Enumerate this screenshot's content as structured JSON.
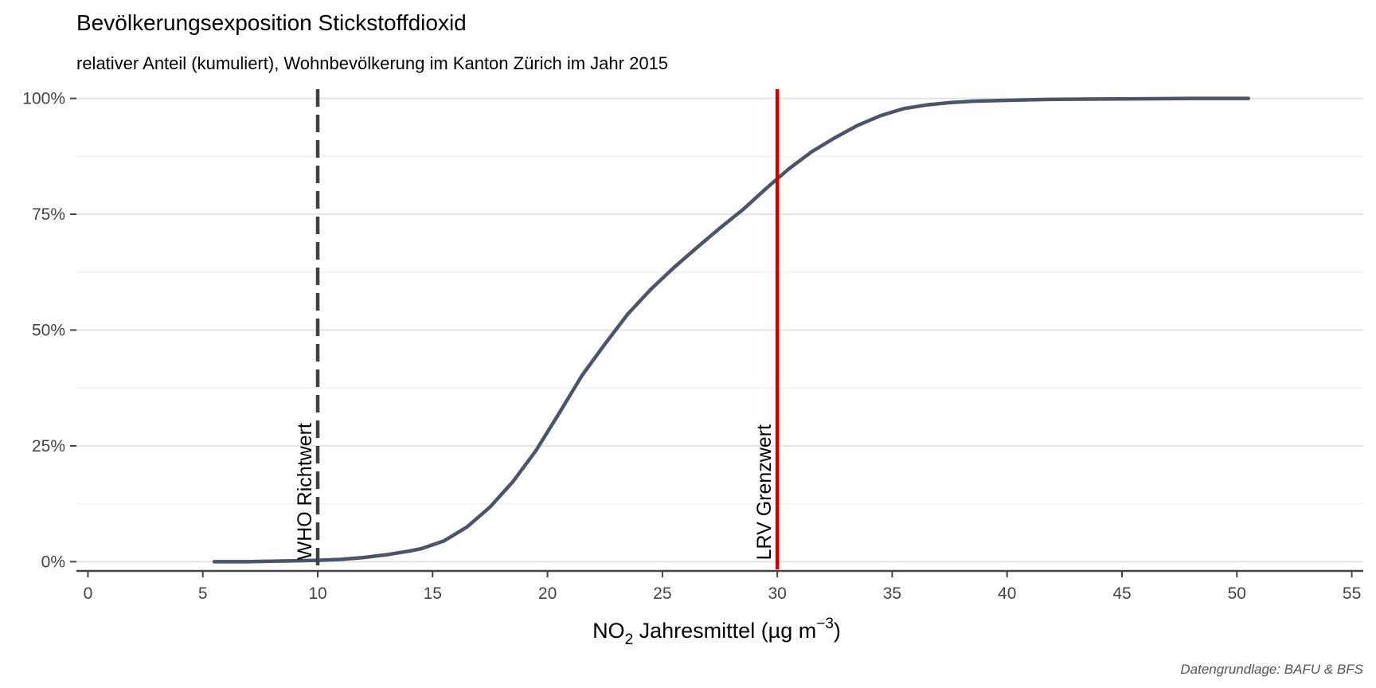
{
  "chart_data": {
    "type": "line",
    "title": "Bevölkerungsexposition Stickstoffdioxid",
    "subtitle": "relativer Anteil (kumuliert), Wohnbevölkerung im Kanton Zürich im Jahr 2015",
    "xlabel": {
      "prefix": "NO",
      "sub": "2",
      "mid": " Jahresmittel (µg m",
      "sup": "−3",
      "suffix": ")"
    },
    "ylabel": "",
    "caption": "Datengrundlage: BAFU & BFS",
    "xlim": [
      -0.5,
      55.5
    ],
    "ylim": [
      -0.02,
      1.02
    ],
    "x_ticks": [
      0,
      5,
      10,
      15,
      20,
      25,
      30,
      35,
      40,
      45,
      50,
      55
    ],
    "x_tick_labels": [
      "0",
      "5",
      "10",
      "15",
      "20",
      "25",
      "30",
      "35",
      "40",
      "45",
      "50",
      "55"
    ],
    "y_ticks": [
      0,
      0.25,
      0.5,
      0.75,
      1.0
    ],
    "y_tick_labels": [
      "0%",
      "25%",
      "50%",
      "75%",
      "100%"
    ],
    "grid": true,
    "series": [
      {
        "color": "#4b5468",
        "x": [
          5.5,
          6,
          7,
          8,
          9,
          10,
          11,
          12,
          13,
          14,
          14.5,
          15.5,
          16.5,
          17.5,
          18.5,
          19.5,
          20.5,
          21.5,
          22.5,
          23.5,
          24.5,
          25.5,
          26.5,
          27.5,
          28.5,
          29.5,
          30.5,
          31.5,
          32.5,
          33.5,
          34.5,
          35.5,
          36.5,
          37.5,
          38.5,
          40,
          42,
          45,
          48,
          50.5
        ],
        "y": [
          0.0,
          0.0,
          0.0,
          0.001,
          0.002,
          0.003,
          0.005,
          0.009,
          0.015,
          0.023,
          0.028,
          0.045,
          0.075,
          0.118,
          0.173,
          0.24,
          0.32,
          0.402,
          0.47,
          0.535,
          0.588,
          0.635,
          0.678,
          0.72,
          0.76,
          0.805,
          0.848,
          0.885,
          0.915,
          0.942,
          0.963,
          0.978,
          0.986,
          0.991,
          0.994,
          0.996,
          0.998,
          0.999,
          1.0,
          1.0
        ]
      }
    ],
    "reference_lines": [
      {
        "x": 10,
        "label": "WHO Richtwert",
        "color": "#3f3f3f",
        "style": "dashed"
      },
      {
        "x": 30,
        "label": "LRV Grenzwert",
        "color": "#cc0000",
        "style": "solid"
      }
    ]
  }
}
